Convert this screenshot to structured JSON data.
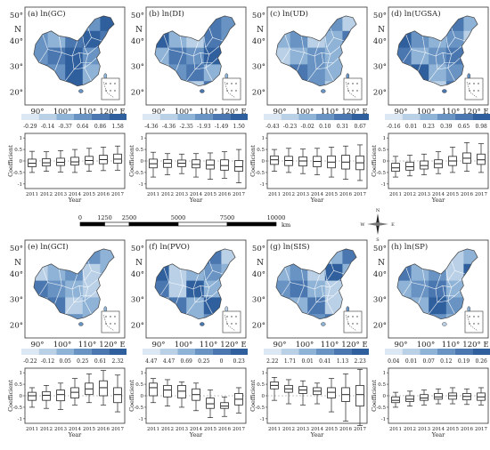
{
  "years": [
    "2011",
    "2012",
    "2013",
    "2014",
    "2015",
    "2016",
    "2017"
  ],
  "axis": {
    "lon_labels": [
      "90°",
      "100°",
      "110°",
      "120° E"
    ],
    "lat_labels": [
      "50°",
      "40°",
      "30°",
      "20°"
    ],
    "north_label": "N",
    "box_ylabel": "Coefficient",
    "box_xlabel": "Year",
    "box_yticks": [
      "1",
      "0.5",
      "0",
      "-0.5",
      "-1"
    ]
  },
  "scalebar": {
    "ticks": [
      "0",
      "1250",
      "2500",
      "5000",
      "7500",
      "10000"
    ],
    "unit": "km"
  },
  "compass": {
    "n": "N",
    "s": "S",
    "e": "E",
    "w": "W"
  },
  "ramp_colors": [
    "#dbe7f3",
    "#b9d0e7",
    "#8fb3d6",
    "#6893c3",
    "#4a77b0",
    "#2f5f9c"
  ],
  "panels": [
    {
      "id": "a",
      "title": "(a) ln(GC)",
      "legend": [
        "-0.29",
        "-0.14",
        "-0.37",
        "0.64",
        "0.86",
        "1.58"
      ],
      "shades": [
        4,
        3,
        4,
        3,
        5,
        3,
        2,
        4,
        5,
        4,
        3,
        4,
        5,
        3,
        2,
        4,
        3,
        5,
        2,
        3,
        4,
        3,
        5,
        2,
        4
      ],
      "boxes": [
        [
          -0.5,
          -0.25,
          -0.1,
          0.08,
          0.42
        ],
        [
          -0.45,
          -0.22,
          -0.08,
          0.1,
          0.4
        ],
        [
          -0.48,
          -0.2,
          -0.06,
          0.12,
          0.45
        ],
        [
          -0.5,
          -0.18,
          -0.04,
          0.16,
          0.5
        ],
        [
          -0.45,
          -0.15,
          0.02,
          0.2,
          0.55
        ],
        [
          -0.42,
          -0.12,
          0.06,
          0.25,
          0.6
        ],
        [
          -0.4,
          -0.1,
          0.08,
          0.3,
          0.65
        ]
      ]
    },
    {
      "id": "b",
      "title": "(b) ln(DI)",
      "legend": [
        "-4.36",
        "-4.36",
        "-2.35",
        "-1.93",
        "-1.49",
        "1.50"
      ],
      "shades": [
        1,
        3,
        2,
        4,
        3,
        5,
        2,
        1,
        4,
        3,
        2,
        4,
        3,
        5,
        2,
        1,
        3,
        4,
        2,
        5,
        3,
        2,
        1,
        4,
        3
      ],
      "boxes": [
        [
          -0.7,
          -0.3,
          -0.12,
          0.08,
          0.38
        ],
        [
          -0.6,
          -0.28,
          -0.1,
          0.06,
          0.32
        ],
        [
          -0.55,
          -0.25,
          -0.1,
          0.04,
          0.3
        ],
        [
          -0.7,
          -0.3,
          -0.15,
          0.05,
          0.32
        ],
        [
          -0.8,
          -0.35,
          -0.18,
          0.04,
          0.35
        ],
        [
          -0.75,
          -0.4,
          -0.2,
          0.05,
          0.4
        ],
        [
          -0.95,
          -0.45,
          -0.25,
          0.02,
          0.5
        ]
      ]
    },
    {
      "id": "c",
      "title": "(c) ln(UD)",
      "legend": [
        "-0.43",
        "-0.23",
        "-0.02",
        "0.10",
        "0.31",
        "0.67"
      ],
      "shades": [
        2,
        1,
        2,
        3,
        1,
        2,
        3,
        1,
        2,
        4,
        1,
        2,
        3,
        2,
        1,
        2,
        4,
        3,
        2,
        1,
        5,
        2,
        3,
        1,
        2
      ],
      "boxes": [
        [
          -0.45,
          -0.15,
          0.05,
          0.22,
          0.5
        ],
        [
          -0.5,
          -0.2,
          0.02,
          0.2,
          0.55
        ],
        [
          -0.55,
          -0.22,
          0.0,
          0.18,
          0.52
        ],
        [
          -0.6,
          -0.25,
          -0.02,
          0.2,
          0.55
        ],
        [
          -0.7,
          -0.3,
          -0.05,
          0.22,
          0.6
        ],
        [
          -0.8,
          -0.35,
          -0.05,
          0.25,
          0.65
        ],
        [
          -0.85,
          -0.38,
          -0.08,
          0.22,
          0.7
        ]
      ]
    },
    {
      "id": "d",
      "title": "(d) ln(UGSA)",
      "legend": [
        "-0.16",
        "0.01",
        "0.23",
        "0.39",
        "0.65",
        "0.98"
      ],
      "shades": [
        3,
        2,
        3,
        4,
        2,
        5,
        3,
        2,
        3,
        1,
        4,
        2,
        3,
        4,
        2,
        3,
        5,
        2,
        3,
        4,
        2,
        3,
        1,
        4,
        2
      ],
      "boxes": [
        [
          -0.7,
          -0.45,
          -0.3,
          -0.1,
          0.2
        ],
        [
          -0.65,
          -0.4,
          -0.25,
          -0.05,
          0.25
        ],
        [
          -0.6,
          -0.35,
          -0.2,
          0.0,
          0.3
        ],
        [
          -0.55,
          -0.3,
          -0.12,
          0.05,
          0.4
        ],
        [
          -0.5,
          -0.2,
          0.0,
          0.2,
          0.6
        ],
        [
          -0.45,
          -0.1,
          0.12,
          0.35,
          0.8
        ],
        [
          -0.5,
          -0.15,
          0.05,
          0.3,
          0.75
        ]
      ]
    },
    {
      "id": "e",
      "title": "(e) ln(GCI)",
      "legend": [
        "-0.22",
        "-0.12",
        "0.05",
        "0.25",
        "0.61",
        "2.32"
      ],
      "shades": [
        3,
        2,
        4,
        3,
        2,
        1,
        2,
        3,
        1,
        2,
        4,
        3,
        2,
        1,
        3,
        2,
        4,
        1,
        2,
        3,
        1,
        2,
        3,
        2,
        1
      ],
      "boxes": [
        [
          -0.5,
          -0.2,
          0.0,
          0.15,
          0.35
        ],
        [
          -0.55,
          -0.2,
          0.02,
          0.18,
          0.45
        ],
        [
          -0.6,
          -0.22,
          0.05,
          0.25,
          0.55
        ],
        [
          -0.4,
          -0.1,
          0.15,
          0.35,
          0.75
        ],
        [
          -0.3,
          0.05,
          0.3,
          0.55,
          0.95
        ],
        [
          -0.4,
          0.0,
          0.35,
          0.65,
          1.1
        ],
        [
          -0.7,
          -0.3,
          0.05,
          0.35,
          0.9
        ]
      ]
    },
    {
      "id": "f",
      "title": "(f) ln(PVO)",
      "legend": [
        "4.47",
        "4.47",
        "0.69",
        "0.25",
        "0",
        "0.23"
      ],
      "shades": [
        1,
        1,
        2,
        4,
        1,
        5,
        1,
        2,
        3,
        2,
        4,
        1,
        5,
        2,
        3,
        1,
        4,
        2,
        5,
        3,
        1,
        4,
        2,
        3,
        1
      ],
      "boxes": [
        [
          -0.3,
          0.0,
          0.35,
          0.55,
          0.75
        ],
        [
          -0.45,
          -0.05,
          0.25,
          0.45,
          0.7
        ],
        [
          -0.5,
          -0.1,
          0.2,
          0.45,
          0.6
        ],
        [
          -0.65,
          -0.2,
          0.05,
          0.3,
          0.55
        ],
        [
          -0.95,
          -0.55,
          -0.35,
          -0.1,
          0.25
        ],
        [
          -0.9,
          -0.55,
          -0.45,
          -0.3,
          -0.05
        ],
        [
          -0.75,
          -0.4,
          -0.15,
          0.1,
          0.35
        ]
      ]
    },
    {
      "id": "g",
      "title": "(g) ln(SIS)",
      "legend": [
        "2.22",
        "1.71",
        "0.01",
        "0.41",
        "1.13",
        "2.23"
      ],
      "shades": [
        2,
        1,
        3,
        2,
        4,
        2,
        3,
        1,
        5,
        2,
        3,
        4,
        2,
        1,
        5,
        3,
        2,
        4,
        1,
        3,
        5,
        2,
        3,
        4,
        1
      ],
      "boxes": [
        [
          -0.2,
          0.3,
          0.45,
          0.6,
          0.8
        ],
        [
          -0.35,
          0.15,
          0.3,
          0.45,
          0.7
        ],
        [
          -0.4,
          0.1,
          0.25,
          0.4,
          0.65
        ],
        [
          -0.35,
          0.05,
          0.2,
          0.35,
          0.55
        ],
        [
          -0.7,
          -0.1,
          0.15,
          0.35,
          0.75
        ],
        [
          -1.1,
          -0.25,
          0.05,
          0.35,
          0.95
        ],
        [
          -1.3,
          -0.45,
          0.05,
          0.45,
          1.15
        ]
      ]
    },
    {
      "id": "h",
      "title": "(h) ln(SP)",
      "legend": [
        "0.04",
        "0.01",
        "0.07",
        "0.12",
        "0.19",
        "0.26"
      ],
      "shades": [
        3,
        2,
        3,
        1,
        2,
        4,
        2,
        3,
        1,
        5,
        2,
        3,
        4,
        2,
        1,
        3,
        2,
        5,
        3,
        2,
        4,
        1,
        3,
        2,
        4
      ],
      "boxes": [
        [
          -0.5,
          -0.3,
          -0.2,
          -0.05,
          0.15
        ],
        [
          -0.45,
          -0.25,
          -0.15,
          0.0,
          0.2
        ],
        [
          -0.4,
          -0.2,
          -0.1,
          0.05,
          0.25
        ],
        [
          -0.35,
          -0.15,
          -0.05,
          0.1,
          0.3
        ],
        [
          -0.35,
          -0.15,
          0.0,
          0.12,
          0.35
        ],
        [
          -0.38,
          -0.18,
          -0.03,
          0.1,
          0.3
        ],
        [
          -0.4,
          -0.2,
          -0.05,
          0.12,
          0.35
        ]
      ]
    }
  ]
}
